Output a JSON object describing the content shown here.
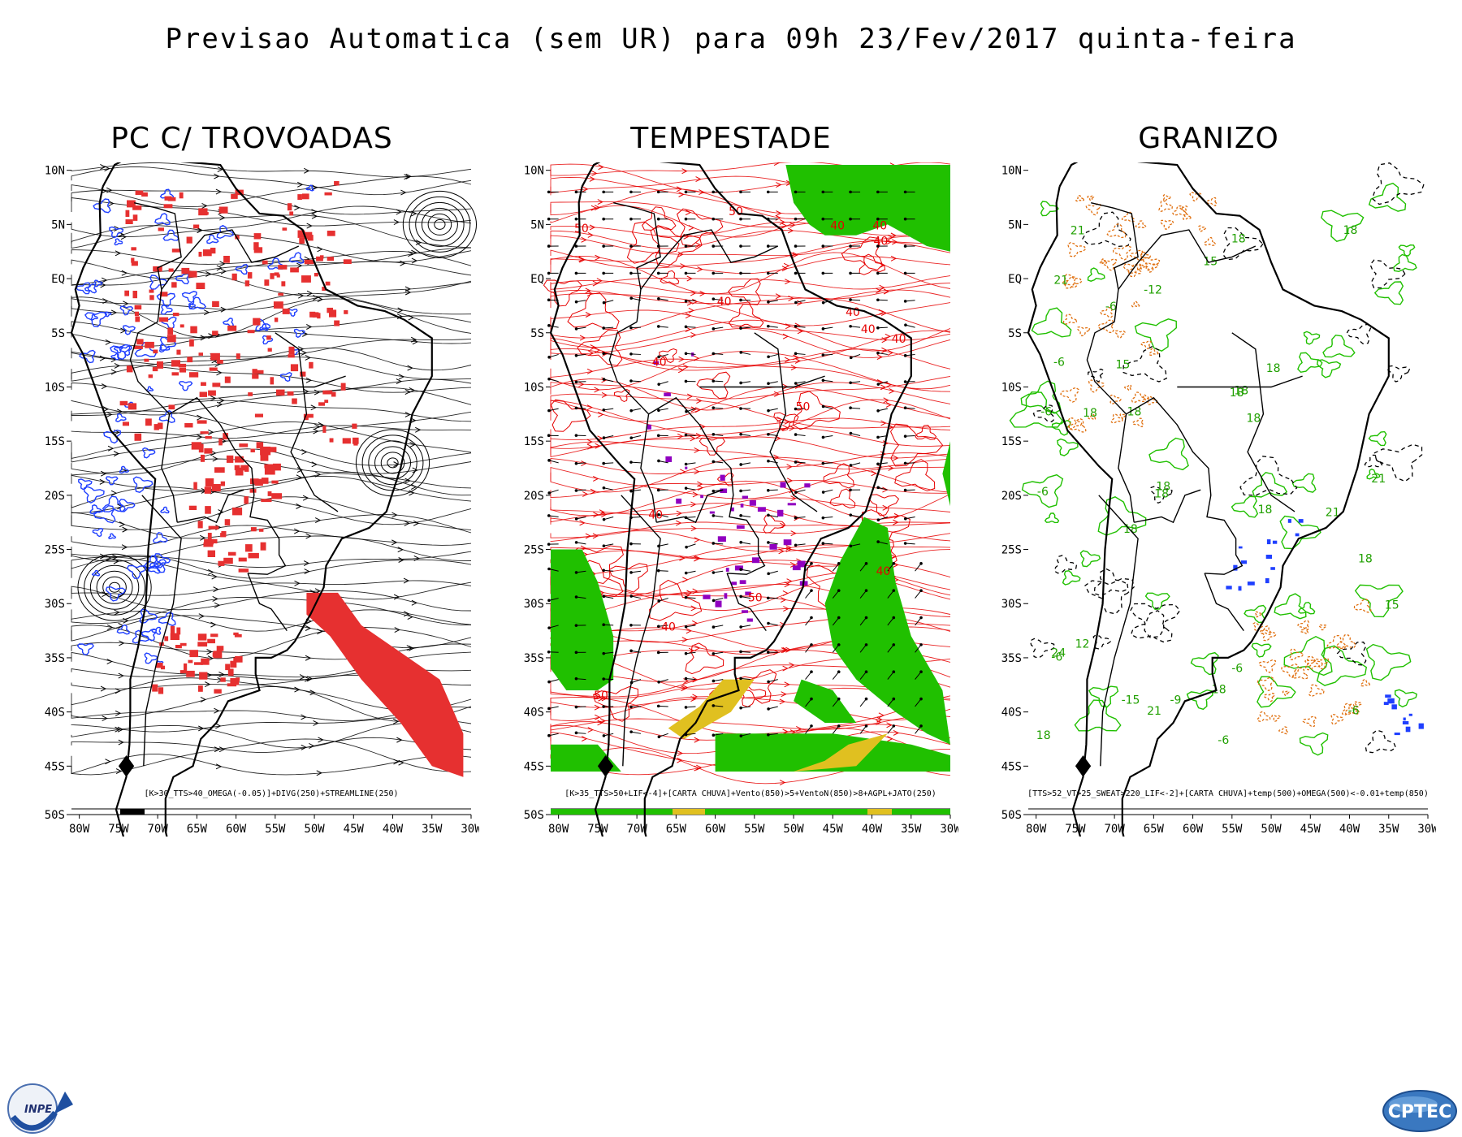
{
  "page_title": "Previsao Automatica (sem UR) para 09h 23/Fev/2017 quinta-feira",
  "lat_labels": [
    "10N",
    "5N",
    "EQ",
    "5S",
    "10S",
    "15S",
    "20S",
    "25S",
    "30S",
    "35S",
    "40S",
    "45S"
  ],
  "bottom_lat_label": "50S",
  "lon_labels": [
    "80W",
    "75W",
    "70W",
    "65W",
    "60W",
    "55W",
    "50W",
    "45W",
    "40W",
    "35W",
    "30W"
  ],
  "panels": [
    {
      "id": "trovoadas",
      "title": "PC C/ TROVOADAS",
      "caption": "[K>30_TTS>40_OMEGA(-0.05)]+DIVG(250)+STREAMLINE(250)",
      "colors": {
        "primary": "#e60000",
        "secondary": "#1f3fff",
        "lines": "#000000"
      }
    },
    {
      "id": "tempestade",
      "title": "TEMPESTADE",
      "caption": "[K>35_TTS>50+LIF<-4]+[CARTA CHUVA]+Vento(850)>5+VentoN(850)>8+AGPL+JATO(250)",
      "contour_labels": [
        "50",
        "40",
        "50",
        "50",
        "50",
        "40",
        "40",
        "50",
        "40",
        "40",
        "40",
        "40",
        "40",
        "40",
        "40",
        "40"
      ],
      "colors": {
        "primary": "#e60000",
        "green": "#20c000",
        "yellow": "#e0c020",
        "purple": "#9000c0",
        "lines": "#000000"
      }
    },
    {
      "id": "granizo",
      "title": "GRANIZO",
      "caption": "[TTS>52_VT>25_SWEAT>220_LIF<-2]+[CARTA CHUVA]+temp(500)+OMEGA(500)<-0.01+temp(850)",
      "contour_labels": [
        "18",
        "-6",
        "18",
        "-6",
        "-6",
        "18",
        "-6",
        "18",
        "18",
        "18",
        "18",
        "15",
        "-6",
        "18",
        "21",
        "18",
        "21",
        "-6",
        "18",
        "18",
        "21",
        "21",
        "-6",
        "18",
        "15",
        "18",
        "18",
        "24",
        "21",
        "-6",
        "15",
        "-9",
        "-12",
        "12",
        "-15",
        "18"
      ],
      "colors": {
        "green": "#20c000",
        "orange": "#e07010",
        "blue": "#1f3fff",
        "lines": "#000000"
      }
    }
  ],
  "logos": {
    "left": "INPE",
    "right": "CPTEC"
  }
}
